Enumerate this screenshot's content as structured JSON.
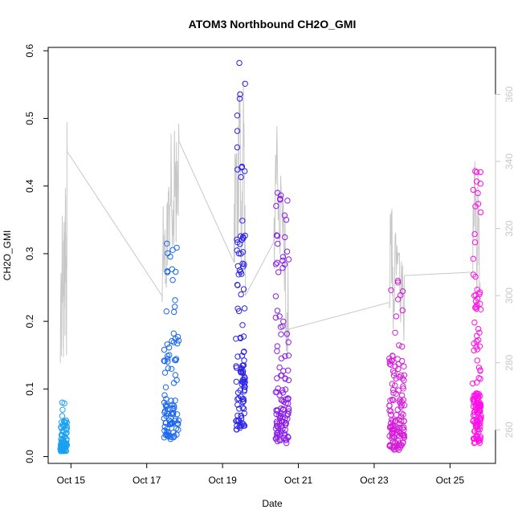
{
  "chart_data": {
    "type": "scatter",
    "title": "ATOM3 Northbound CH2O_GMI",
    "xlabel": "Date",
    "ylabel": "CH2O_GMI",
    "x_tick_labels": [
      "Oct 15",
      "Oct 17",
      "Oct 19",
      "Oct 21",
      "Oct 23",
      "Oct 25"
    ],
    "x_tick_values": [
      15,
      17,
      19,
      21,
      23,
      25
    ],
    "xlim": [
      14.4,
      26.2
    ],
    "ylim": [
      -0.01,
      0.605
    ],
    "y_ticks": [
      "0.0",
      "0.1",
      "0.2",
      "0.3",
      "0.4",
      "0.5",
      "0.6"
    ],
    "y_tick_values": [
      0.0,
      0.1,
      0.2,
      0.3,
      0.4,
      0.5,
      0.6
    ],
    "y2lim": [
      250,
      374
    ],
    "y2_ticks": [
      "260",
      "280",
      "300",
      "320",
      "340",
      "360"
    ],
    "y2_tick_values": [
      260,
      280,
      300,
      320,
      340,
      360
    ],
    "grid": false,
    "colors": {
      "line": "#c8c8c8",
      "right_axis": "#c8c8c8",
      "point_gradient": [
        "#00a0ff",
        "#0066ff",
        "#2a1fe8",
        "#8a1ff0",
        "#ff00ff"
      ]
    },
    "groups": [
      {
        "x": [
          14.72,
          14.9
        ],
        "y_min": 0.008,
        "y_max": 0.08,
        "color": "#1aa0f0"
      },
      {
        "x": [
          17.45,
          17.85
        ],
        "y_min": 0.026,
        "y_max": 0.315,
        "color": "#1a66ee"
      },
      {
        "x": [
          19.35,
          19.6
        ],
        "y_min": 0.04,
        "y_max": 0.582,
        "color": "#2a22e6"
      },
      {
        "x": [
          20.4,
          20.75
        ],
        "y_min": 0.02,
        "y_max": 0.39,
        "color": "#8a1ee8"
      },
      {
        "x": [
          23.4,
          23.8
        ],
        "y_min": 0.01,
        "y_max": 0.26,
        "color": "#d41ad8"
      },
      {
        "x": [
          25.6,
          25.82
        ],
        "y_min": 0.02,
        "y_max": 0.422,
        "color": "#ff10e8"
      }
    ],
    "series": [
      {
        "type": "line",
        "axis": "right",
        "x": [
          14.72,
          14.78,
          14.8,
          14.82,
          14.84,
          14.86,
          14.88,
          14.9,
          17.4,
          17.45,
          17.5,
          17.55,
          17.6,
          17.65,
          17.7,
          17.75,
          17.8,
          17.85,
          19.3,
          19.35,
          19.4,
          19.45,
          19.5,
          19.55,
          19.6,
          20.35,
          20.4,
          20.5,
          20.6,
          20.7,
          20.75,
          23.4,
          23.45,
          23.5,
          23.6,
          23.7,
          23.8,
          25.6,
          25.65,
          25.7,
          25.75,
          25.8
        ],
        "y": [
          280,
          315,
          290,
          322,
          300,
          330,
          288,
          343,
          300,
          318,
          305,
          328,
          312,
          335,
          318,
          340,
          325,
          346,
          310,
          340,
          322,
          355,
          318,
          364,
          300,
          316,
          342,
          318,
          330,
          295,
          290,
          298,
          325,
          290,
          315,
          292,
          306,
          307,
          336,
          310,
          328,
          300
        ]
      }
    ]
  }
}
